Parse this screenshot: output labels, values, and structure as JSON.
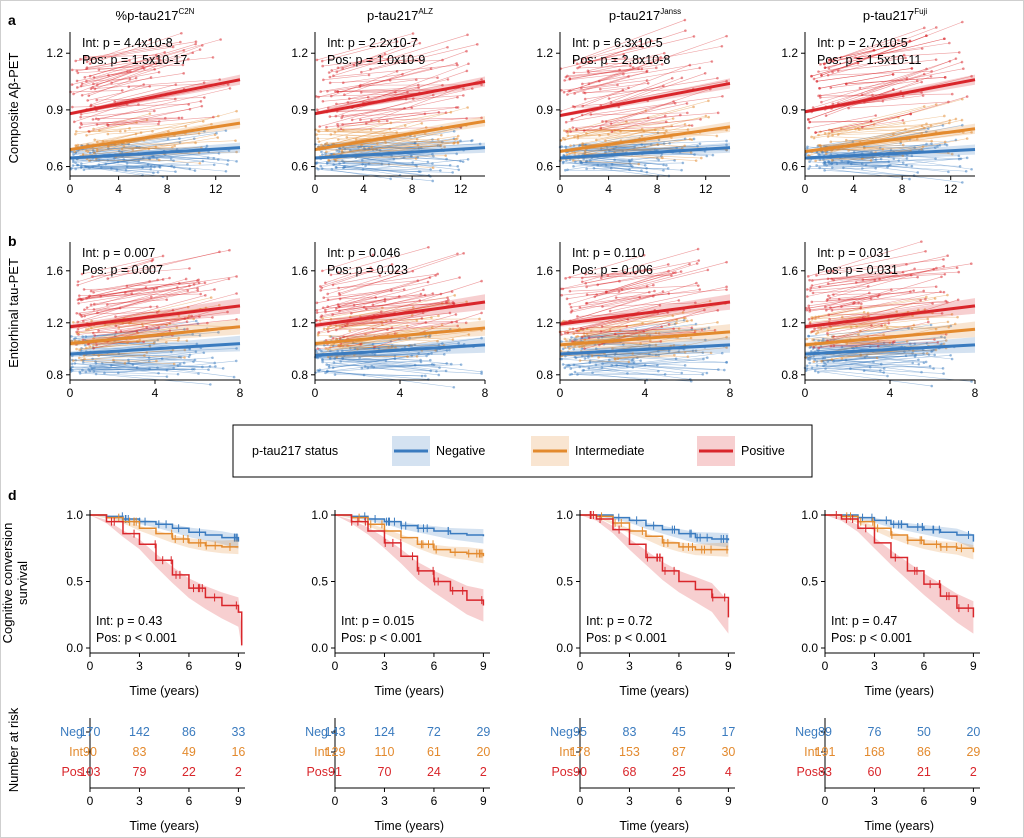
{
  "panels": {
    "a": "a",
    "b": "b",
    "d": "d"
  },
  "colors": {
    "neg": "#3a7bbf",
    "int": "#e38a2e",
    "pos": "#d9262b"
  },
  "column_titles": [
    {
      "base": "%p-tau217",
      "sup": "C2N"
    },
    {
      "base": "p-tau217",
      "sup": "ALZ"
    },
    {
      "base": "p-tau217",
      "sup": "Janss"
    },
    {
      "base": "p-tau217",
      "sup": "Fuji"
    }
  ],
  "row_a": {
    "ylabel": "Composite Aβ-PET",
    "xticks": [
      "0",
      "4",
      "8",
      "12"
    ],
    "yticks": [
      "0.6",
      "0.9",
      "1.2"
    ],
    "annotations": [
      {
        "int": "Int: p = 4.4x10-8",
        "pos": "Pos: p = 1.5x10-17"
      },
      {
        "int": "Int: p = 2.2x10-7",
        "pos": "Pos: p = 1.0x10-9"
      },
      {
        "int": "Int: p = 6.3x10-5",
        "pos": "Pos: p = 2.8x10-8"
      },
      {
        "int": "Int: p = 2.7x10-5",
        "pos": "Pos: p = 1.5x10-11"
      }
    ]
  },
  "row_b": {
    "ylabel": "Entorhinal tau-PET",
    "xticks": [
      "0",
      "4",
      "8"
    ],
    "yticks": [
      "0.8",
      "1.2",
      "1.6"
    ],
    "annotations": [
      {
        "int": "Int: p = 0.007",
        "pos": "Pos: p = 0.007"
      },
      {
        "int": "Int: p = 0.046",
        "pos": "Pos: p = 0.023"
      },
      {
        "int": "Int: p = 0.110",
        "pos": "Pos: p = 0.006"
      },
      {
        "int": "Int: p = 0.031",
        "pos": "Pos: p = 0.031"
      }
    ]
  },
  "legend": {
    "title": "p-tau217 status",
    "items": [
      {
        "label": "Negative",
        "color": "#3a7bbf"
      },
      {
        "label": "Intermediate",
        "color": "#e38a2e"
      },
      {
        "label": "Positive",
        "color": "#d9262b"
      }
    ]
  },
  "row_d": {
    "ylabel_line1": "Cognitive conversion",
    "ylabel_line2": "survival",
    "xlabel": "Time (years)",
    "xticks": [
      "0",
      "3",
      "6",
      "9"
    ],
    "yticks": [
      "0.0",
      "0.5",
      "1.0"
    ],
    "annotations": [
      {
        "int": "Int: p = 0.43",
        "pos": "Pos: p < 0.001"
      },
      {
        "int": "Int: p = 0.015",
        "pos": "Pos: p < 0.001"
      },
      {
        "int": "Int: p = 0.72",
        "pos": "Pos: p < 0.001"
      },
      {
        "int": "Int: p = 0.47",
        "pos": "Pos: p < 0.001"
      }
    ]
  },
  "risk_table": {
    "ylabel": "Number at risk",
    "xlabel": "Time (years)",
    "groups": [
      "Neg",
      "Int",
      "Pos"
    ],
    "xticks": [
      "0",
      "3",
      "6",
      "9"
    ],
    "values": [
      {
        "Neg": [
          "170",
          "142",
          "86",
          "33"
        ],
        "Int": [
          "90",
          "83",
          "49",
          "16"
        ],
        "Pos": [
          "103",
          "79",
          "22",
          "2"
        ]
      },
      {
        "Neg": [
          "143",
          "124",
          "72",
          "29"
        ],
        "Int": [
          "129",
          "110",
          "61",
          "20"
        ],
        "Pos": [
          "91",
          "70",
          "24",
          "2"
        ]
      },
      {
        "Neg": [
          "95",
          "83",
          "45",
          "17"
        ],
        "Int": [
          "178",
          "153",
          "87",
          "30"
        ],
        "Pos": [
          "90",
          "68",
          "25",
          "4"
        ]
      },
      {
        "Neg": [
          "89",
          "76",
          "50",
          "20"
        ],
        "Int": [
          "191",
          "168",
          "86",
          "29"
        ],
        "Pos": [
          "83",
          "60",
          "21",
          "2"
        ]
      }
    ]
  },
  "chart_data": [
    {
      "type": "line",
      "panel": "a",
      "ylabel": "Composite Aβ-PET",
      "xlim": [
        0,
        14
      ],
      "ylim": [
        0.55,
        1.27
      ],
      "series": [
        {
          "name": "Negative",
          "fits": [
            [
              0.645,
              0.7
            ],
            [
              0.645,
              0.7
            ],
            [
              0.645,
              0.7
            ],
            [
              0.645,
              0.69
            ]
          ]
        },
        {
          "name": "Intermediate",
          "fits": [
            [
              0.69,
              0.83
            ],
            [
              0.69,
              0.84
            ],
            [
              0.68,
              0.81
            ],
            [
              0.68,
              0.8
            ]
          ]
        },
        {
          "name": "Positive",
          "fits": [
            [
              0.88,
              1.06
            ],
            [
              0.88,
              1.05
            ],
            [
              0.87,
              1.04
            ],
            [
              0.89,
              1.06
            ]
          ]
        }
      ]
    },
    {
      "type": "line",
      "panel": "b",
      "ylabel": "Entorhinal tau-PET",
      "xlim": [
        0,
        8
      ],
      "ylim": [
        0.76,
        1.76
      ],
      "series": [
        {
          "name": "Negative",
          "fits": [
            [
              0.96,
              1.04
            ],
            [
              0.95,
              1.03
            ],
            [
              0.96,
              1.03
            ],
            [
              0.96,
              1.03
            ]
          ]
        },
        {
          "name": "Intermediate",
          "fits": [
            [
              1.04,
              1.17
            ],
            [
              1.04,
              1.16
            ],
            [
              1.03,
              1.13
            ],
            [
              1.03,
              1.15
            ]
          ]
        },
        {
          "name": "Positive",
          "fits": [
            [
              1.17,
              1.33
            ],
            [
              1.18,
              1.36
            ],
            [
              1.19,
              1.36
            ],
            [
              1.17,
              1.33
            ]
          ]
        }
      ]
    },
    {
      "type": "line",
      "panel": "d",
      "xlabel": "Time (years)",
      "ylabel": "Cognitive conversion survival",
      "xlim": [
        0,
        9
      ],
      "ylim": [
        0,
        1
      ],
      "series": [
        {
          "name": "Negative",
          "curves": [
            [
              [
                0,
                1
              ],
              [
                1,
                0.99
              ],
              [
                2,
                0.97
              ],
              [
                3,
                0.95
              ],
              [
                4,
                0.93
              ],
              [
                5,
                0.9
              ],
              [
                6,
                0.87
              ],
              [
                7,
                0.85
              ],
              [
                8,
                0.83
              ],
              [
                9,
                0.8
              ]
            ],
            [
              [
                0,
                1
              ],
              [
                1,
                0.99
              ],
              [
                2,
                0.97
              ],
              [
                3,
                0.95
              ],
              [
                4,
                0.92
              ],
              [
                5,
                0.9
              ],
              [
                6,
                0.88
              ],
              [
                7,
                0.86
              ],
              [
                8,
                0.85
              ],
              [
                9,
                0.84
              ]
            ],
            [
              [
                0,
                1
              ],
              [
                1,
                1
              ],
              [
                2,
                0.98
              ],
              [
                3,
                0.96
              ],
              [
                4,
                0.92
              ],
              [
                5,
                0.89
              ],
              [
                6,
                0.86
              ],
              [
                7,
                0.83
              ],
              [
                8,
                0.82
              ],
              [
                9,
                0.81
              ]
            ],
            [
              [
                0,
                1
              ],
              [
                1,
                1
              ],
              [
                2,
                0.98
              ],
              [
                3,
                0.96
              ],
              [
                4,
                0.93
              ],
              [
                5,
                0.91
              ],
              [
                6,
                0.89
              ],
              [
                7,
                0.87
              ],
              [
                8,
                0.85
              ],
              [
                9,
                0.8
              ]
            ]
          ]
        },
        {
          "name": "Intermediate",
          "curves": [
            [
              [
                0,
                1
              ],
              [
                1,
                0.98
              ],
              [
                2,
                0.95
              ],
              [
                3,
                0.9
              ],
              [
                4,
                0.86
              ],
              [
                5,
                0.82
              ],
              [
                6,
                0.79
              ],
              [
                7,
                0.77
              ],
              [
                8,
                0.76
              ],
              [
                9,
                0.76
              ]
            ],
            [
              [
                0,
                1
              ],
              [
                1,
                0.98
              ],
              [
                2,
                0.93
              ],
              [
                3,
                0.88
              ],
              [
                4,
                0.83
              ],
              [
                5,
                0.78
              ],
              [
                6,
                0.74
              ],
              [
                7,
                0.72
              ],
              [
                8,
                0.71
              ],
              [
                9,
                0.69
              ]
            ],
            [
              [
                0,
                1
              ],
              [
                1,
                0.99
              ],
              [
                2,
                0.94
              ],
              [
                3,
                0.88
              ],
              [
                4,
                0.84
              ],
              [
                5,
                0.79
              ],
              [
                6,
                0.76
              ],
              [
                7,
                0.74
              ],
              [
                8,
                0.74
              ],
              [
                9,
                0.74
              ]
            ],
            [
              [
                0,
                1
              ],
              [
                1,
                0.99
              ],
              [
                2,
                0.95
              ],
              [
                3,
                0.9
              ],
              [
                4,
                0.85
              ],
              [
                5,
                0.81
              ],
              [
                6,
                0.78
              ],
              [
                7,
                0.76
              ],
              [
                8,
                0.75
              ],
              [
                9,
                0.72
              ]
            ]
          ]
        },
        {
          "name": "Positive",
          "curves": [
            [
              [
                0,
                1
              ],
              [
                1,
                0.95
              ],
              [
                2,
                0.86
              ],
              [
                3,
                0.78
              ],
              [
                4,
                0.66
              ],
              [
                5,
                0.55
              ],
              [
                6,
                0.45
              ],
              [
                7,
                0.38
              ],
              [
                8,
                0.32
              ],
              [
                9,
                0.27
              ],
              [
                9.2,
                0.02
              ]
            ],
            [
              [
                0,
                1
              ],
              [
                1,
                0.95
              ],
              [
                2,
                0.88
              ],
              [
                3,
                0.79
              ],
              [
                4,
                0.69
              ],
              [
                5,
                0.58
              ],
              [
                6,
                0.5
              ],
              [
                7,
                0.43
              ],
              [
                8,
                0.36
              ],
              [
                9,
                0.32
              ]
            ],
            [
              [
                0,
                1
              ],
              [
                1,
                0.97
              ],
              [
                2,
                0.89
              ],
              [
                3,
                0.78
              ],
              [
                4,
                0.68
              ],
              [
                5,
                0.58
              ],
              [
                6,
                0.5
              ],
              [
                7,
                0.44
              ],
              [
                8,
                0.38
              ],
              [
                9,
                0.23
              ]
            ],
            [
              [
                0,
                1
              ],
              [
                1,
                0.97
              ],
              [
                2,
                0.9
              ],
              [
                3,
                0.79
              ],
              [
                4,
                0.68
              ],
              [
                5,
                0.58
              ],
              [
                6,
                0.48
              ],
              [
                7,
                0.39
              ],
              [
                8,
                0.3
              ],
              [
                9,
                0.23
              ]
            ]
          ]
        }
      ]
    }
  ]
}
